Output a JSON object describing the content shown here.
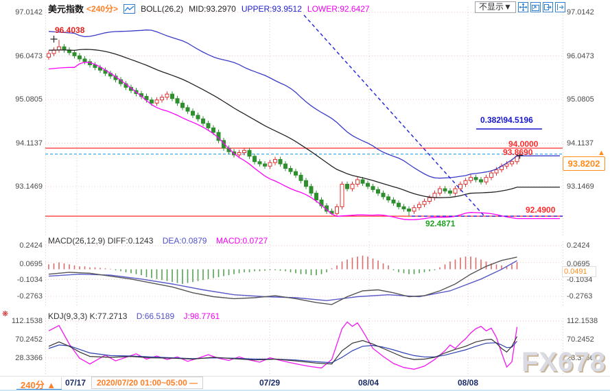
{
  "header": {
    "symbol": "美元指数",
    "period": "<240分>",
    "boll": "BOLL(26,2)",
    "mid": "MID:93.2970",
    "upper": "UPPER:93.9512",
    "lower": "LOWER:92.6427",
    "display_dropdown": "不显示▼"
  },
  "main_axis": [
    "97.0142",
    "96.0473",
    "95.0805",
    "94.1137",
    "93.1469"
  ],
  "macd_panel": {
    "name_diff": "MACD(26,12,9) DIFF:0.1243",
    "dea": "DEA:0.0879",
    "macd": "MACD:0.0727",
    "axis": [
      "0.2424",
      "0.0695",
      "-0.1034",
      "-0.2763"
    ],
    "current": "0.0491"
  },
  "kdj_panel": {
    "name_k": "KDJ(9,3,3) K:77.2713",
    "d": "D:66.5189",
    "j": "J:98.7761",
    "axis": [
      "112.1538",
      "70.2452",
      "28.3366"
    ]
  },
  "annotations": {
    "swing_high": "96.4038",
    "swing_low": "92.4871",
    "fib": "0.382\\94.5196",
    "hline_upper": "94.0000",
    "hline_mid": "93.8690",
    "hline_lower": "92.4900",
    "current_price": "93.8202",
    "arrow": "▲"
  },
  "bottom_bar": {
    "period_tab": "240分 ▲",
    "range_label": "2020/07/20 01:00~05:00 —",
    "dates": [
      "07/17",
      "07/29",
      "08/04",
      "08/08"
    ]
  },
  "watermark": "FX678",
  "colors": {
    "accent_orange": "#ff7f27",
    "candle_up": "#e03030",
    "candle_down": "#2f8f2f",
    "boll_upper": "#3a3ac8",
    "boll_mid": "#222222",
    "boll_lower": "#ff00ff",
    "hline_red": "#ff2a2a",
    "trend_dashed_blue": "#2a2ae0",
    "dashed_cyan": "#2bа0e8",
    "grid_pink": "#ecc3c3",
    "diff_line": "#555555",
    "dea_line": "#5858c8",
    "hist_pos": "#d96b6b",
    "hist_neg": "#55a055",
    "k_line": "#333333",
    "d_line": "#2a3fae",
    "j_line": "#f218f2",
    "date_navy": "#1a2a66"
  },
  "chart_data": [
    {
      "type": "candlestick",
      "title": "美元指数 240分",
      "ylabel": "price",
      "y_ticks": [
        97.0142,
        96.0473,
        95.0805,
        94.1137,
        93.1469
      ],
      "x_ticks": [
        "07/17",
        "07/29",
        "08/04",
        "08/08"
      ],
      "grid": true,
      "boll_params": "BOLL(26,2)",
      "boll_mid_last": 93.297,
      "boll_upper_last": 93.9512,
      "boll_lower_last": 92.6427,
      "open_first": 96.02,
      "default_wick": 0.06,
      "closes": [
        96.1,
        96.18,
        96.25,
        96.18,
        96.12,
        96.05,
        95.98,
        95.92,
        95.85,
        95.79,
        95.73,
        95.66,
        95.6,
        95.52,
        95.43,
        95.35,
        95.28,
        95.21,
        95.15,
        95.07,
        95.0,
        95.07,
        95.13,
        95.2,
        95.1,
        95.0,
        94.9,
        94.82,
        94.73,
        94.65,
        94.55,
        94.45,
        94.35,
        94.17,
        94.0,
        93.92,
        93.85,
        93.9,
        93.95,
        93.82,
        93.7,
        93.65,
        93.6,
        93.68,
        93.75,
        93.65,
        93.55,
        93.48,
        93.4,
        93.28,
        93.15,
        93.0,
        92.85,
        92.72,
        92.6,
        92.55,
        92.7,
        93.2,
        93.1,
        93.2,
        93.3,
        93.22,
        93.15,
        93.08,
        93.0,
        92.92,
        92.85,
        92.78,
        92.7,
        92.65,
        92.6,
        92.68,
        92.75,
        92.82,
        92.9,
        93.0,
        93.1,
        93.05,
        93.0,
        93.1,
        93.2,
        93.28,
        93.35,
        93.3,
        93.25,
        93.35,
        93.45,
        93.52,
        93.6,
        93.65,
        93.7,
        93.82
      ],
      "overrides": {
        "2": {
          "h": 96.4038
        },
        "55": {
          "l": 92.52
        },
        "70": {
          "l": 92.4871
        },
        "91": {
          "h": 93.87
        }
      },
      "prior_closes": [
        95.6,
        95.75,
        95.9,
        96.0,
        96.1,
        96.2,
        96.3,
        96.38,
        96.42,
        96.4,
        96.35,
        96.3,
        96.25,
        96.2,
        96.28,
        96.34,
        96.3,
        96.22,
        96.15,
        96.12
      ],
      "levels": {
        "resistance": 94.0,
        "dashed_mid": 93.869,
        "support": 92.49,
        "fib_382": 94.5196,
        "last": 93.8202
      }
    },
    {
      "type": "macd",
      "params": "MACD(26,12,9)",
      "diff": 0.1243,
      "dea": 0.0879,
      "macd": 0.0727,
      "current_hist": 0.0491,
      "y_ticks": [
        0.2424,
        0.0695,
        -0.1034,
        -0.2763
      ],
      "histogram": [
        0.05,
        0.06,
        0.07,
        0.06,
        0.05,
        0.04,
        0.03,
        0.03,
        0.02,
        0.02,
        0.015,
        0.01,
        0.005,
        -0.01,
        -0.02,
        -0.03,
        -0.04,
        -0.05,
        -0.06,
        -0.08,
        -0.09,
        -0.1,
        -0.11,
        -0.12,
        -0.13,
        -0.14,
        -0.15,
        -0.14,
        -0.13,
        -0.12,
        -0.11,
        -0.1,
        -0.09,
        -0.08,
        -0.07,
        -0.06,
        -0.05,
        -0.04,
        -0.03,
        -0.03,
        -0.02,
        -0.02,
        -0.015,
        -0.01,
        -0.01,
        -0.015,
        -0.02,
        -0.03,
        -0.04,
        -0.05,
        -0.05,
        -0.06,
        -0.06,
        -0.05,
        -0.03,
        0.01,
        0.04,
        0.08,
        0.1,
        0.12,
        0.13,
        0.14,
        0.13,
        0.11,
        0.09,
        0.06,
        0.04,
        -0.01,
        -0.03,
        -0.04,
        -0.05,
        -0.05,
        -0.04,
        -0.03,
        -0.02,
        -0.01,
        0.02,
        0.05,
        0.08,
        0.1,
        0.12,
        0.13,
        0.13,
        0.12,
        0.1,
        0.08,
        0.06,
        0.05,
        0.04,
        0.03,
        0.05,
        0.0727
      ],
      "diff_points": [
        [
          0,
          -0.05
        ],
        [
          4,
          -0.03
        ],
        [
          8,
          -0.04
        ],
        [
          12,
          -0.07
        ],
        [
          16,
          -0.1
        ],
        [
          20,
          -0.14
        ],
        [
          24,
          -0.18
        ],
        [
          28,
          -0.24
        ],
        [
          32,
          -0.28
        ],
        [
          36,
          -0.3
        ],
        [
          40,
          -0.29
        ],
        [
          44,
          -0.27
        ],
        [
          48,
          -0.3
        ],
        [
          52,
          -0.34
        ],
        [
          55,
          -0.36
        ],
        [
          58,
          -0.28
        ],
        [
          61,
          -0.22
        ],
        [
          64,
          -0.21
        ],
        [
          67,
          -0.24
        ],
        [
          70,
          -0.28
        ],
        [
          73,
          -0.27
        ],
        [
          76,
          -0.22
        ],
        [
          79,
          -0.15
        ],
        [
          82,
          -0.05
        ],
        [
          85,
          0.03
        ],
        [
          88,
          0.09
        ],
        [
          91,
          0.1243
        ]
      ],
      "dea_points": [
        [
          0,
          -0.07
        ],
        [
          6,
          -0.05
        ],
        [
          12,
          -0.06
        ],
        [
          18,
          -0.1
        ],
        [
          24,
          -0.15
        ],
        [
          30,
          -0.21
        ],
        [
          36,
          -0.26
        ],
        [
          42,
          -0.28
        ],
        [
          48,
          -0.29
        ],
        [
          54,
          -0.32
        ],
        [
          60,
          -0.28
        ],
        [
          66,
          -0.26
        ],
        [
          72,
          -0.28
        ],
        [
          78,
          -0.22
        ],
        [
          84,
          -0.1
        ],
        [
          88,
          0.0
        ],
        [
          91,
          0.0879
        ]
      ]
    },
    {
      "type": "kdj",
      "params": "KDJ(9,3,3)",
      "k": 77.2713,
      "d": 66.5189,
      "j": 98.7761,
      "y_ticks": [
        112.1538,
        70.2452,
        28.3366
      ],
      "k_points": [
        [
          0,
          55
        ],
        [
          2,
          65
        ],
        [
          4,
          55
        ],
        [
          6,
          42
        ],
        [
          8,
          32
        ],
        [
          12,
          30
        ],
        [
          16,
          32
        ],
        [
          20,
          29
        ],
        [
          24,
          28
        ],
        [
          28,
          26
        ],
        [
          32,
          30
        ],
        [
          36,
          27
        ],
        [
          40,
          24
        ],
        [
          44,
          26
        ],
        [
          48,
          22
        ],
        [
          52,
          17
        ],
        [
          55,
          15
        ],
        [
          57,
          45
        ],
        [
          59,
          62
        ],
        [
          61,
          68
        ],
        [
          63,
          60
        ],
        [
          65,
          50
        ],
        [
          67,
          40
        ],
        [
          69,
          30
        ],
        [
          71,
          25
        ],
        [
          73,
          26
        ],
        [
          75,
          30
        ],
        [
          77,
          40
        ],
        [
          79,
          48
        ],
        [
          81,
          55
        ],
        [
          83,
          65
        ],
        [
          85,
          70
        ],
        [
          86,
          71
        ],
        [
          87,
          62
        ],
        [
          88,
          50
        ],
        [
          89,
          42
        ],
        [
          90,
          55
        ],
        [
          91,
          77.27
        ]
      ],
      "d_points": [
        [
          0,
          50
        ],
        [
          2,
          58
        ],
        [
          4,
          56
        ],
        [
          6,
          48
        ],
        [
          8,
          40
        ],
        [
          12,
          34
        ],
        [
          16,
          33
        ],
        [
          20,
          31
        ],
        [
          24,
          29
        ],
        [
          28,
          27
        ],
        [
          32,
          29
        ],
        [
          36,
          28
        ],
        [
          40,
          26
        ],
        [
          44,
          26
        ],
        [
          48,
          24
        ],
        [
          52,
          20
        ],
        [
          55,
          18
        ],
        [
          57,
          30
        ],
        [
          59,
          45
        ],
        [
          61,
          55
        ],
        [
          63,
          57
        ],
        [
          65,
          53
        ],
        [
          67,
          47
        ],
        [
          69,
          40
        ],
        [
          71,
          34
        ],
        [
          73,
          31
        ],
        [
          75,
          31
        ],
        [
          77,
          35
        ],
        [
          79,
          41
        ],
        [
          81,
          47
        ],
        [
          83,
          55
        ],
        [
          85,
          62
        ],
        [
          87,
          63
        ],
        [
          88,
          58
        ],
        [
          89,
          52
        ],
        [
          90,
          53
        ],
        [
          91,
          66.52
        ]
      ],
      "j_points": [
        [
          0,
          90
        ],
        [
          2,
          102
        ],
        [
          4,
          60
        ],
        [
          6,
          28
        ],
        [
          8,
          15
        ],
        [
          11,
          35
        ],
        [
          13,
          22
        ],
        [
          15,
          30
        ],
        [
          17,
          38
        ],
        [
          19,
          26
        ],
        [
          21,
          33
        ],
        [
          23,
          25
        ],
        [
          25,
          31
        ],
        [
          27,
          21
        ],
        [
          29,
          28
        ],
        [
          31,
          36
        ],
        [
          33,
          28
        ],
        [
          35,
          23
        ],
        [
          37,
          31
        ],
        [
          39,
          24
        ],
        [
          41,
          19
        ],
        [
          43,
          29
        ],
        [
          45,
          23
        ],
        [
          47,
          18
        ],
        [
          49,
          13
        ],
        [
          51,
          9
        ],
        [
          53,
          6
        ],
        [
          55,
          25
        ],
        [
          56,
          60
        ],
        [
          57,
          95
        ],
        [
          58,
          110
        ],
        [
          59,
          100
        ],
        [
          60,
          108
        ],
        [
          61,
          90
        ],
        [
          62,
          70
        ],
        [
          63,
          50
        ],
        [
          65,
          32
        ],
        [
          67,
          16
        ],
        [
          69,
          7
        ],
        [
          71,
          3
        ],
        [
          73,
          10
        ],
        [
          75,
          25
        ],
        [
          77,
          45
        ],
        [
          78,
          58
        ],
        [
          79,
          50
        ],
        [
          80,
          62
        ],
        [
          81,
          72
        ],
        [
          82,
          85
        ],
        [
          83,
          95
        ],
        [
          84,
          100
        ],
        [
          85,
          90
        ],
        [
          86,
          96
        ],
        [
          87,
          75
        ],
        [
          88,
          40
        ],
        [
          89,
          8
        ],
        [
          90,
          20
        ],
        [
          91,
          98.78
        ]
      ]
    }
  ]
}
